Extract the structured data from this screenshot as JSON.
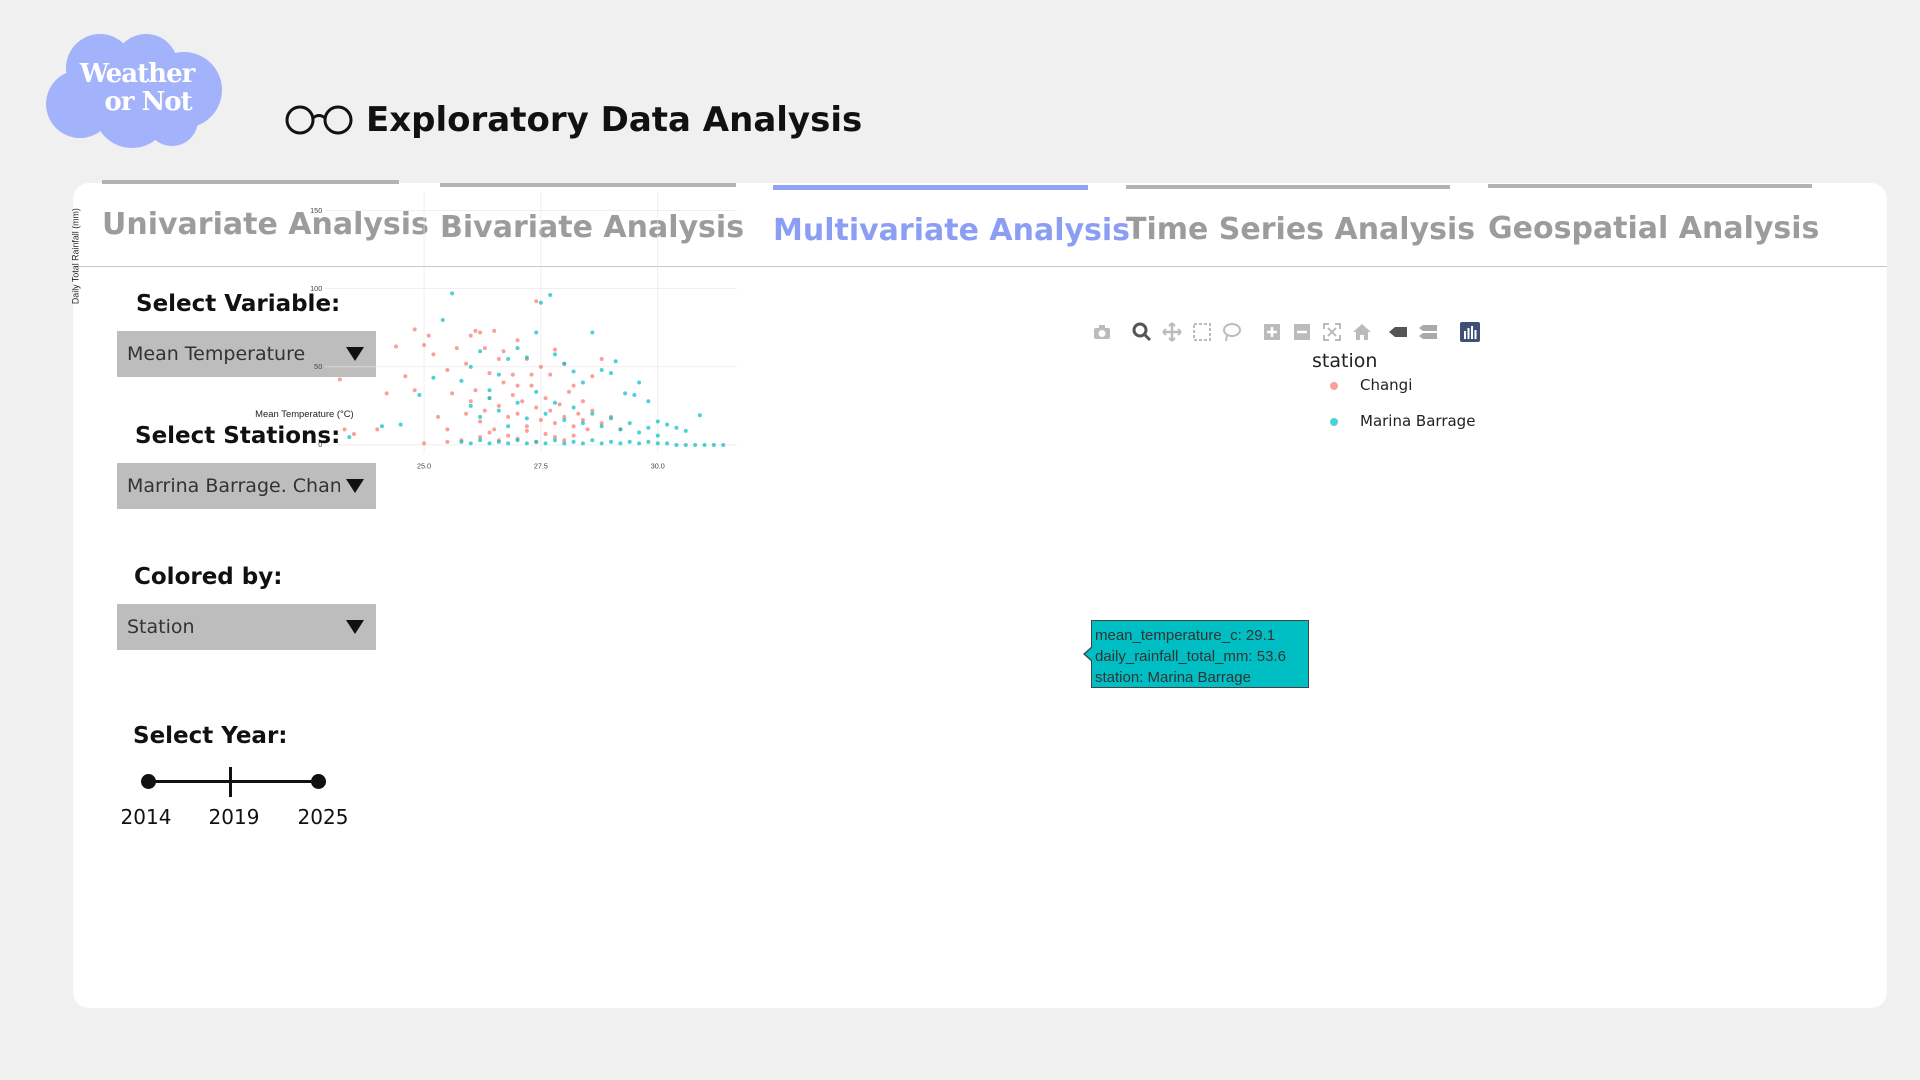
{
  "logo": {
    "line1": "Weather",
    "line2": "or Not",
    "color": "#a3b3fb"
  },
  "page": {
    "title": "Exploratory Data Analysis",
    "icon": "glasses-icon"
  },
  "tabs": [
    {
      "label": "Univariate Analysis",
      "active": false
    },
    {
      "label": "Bivariate Analysis",
      "active": false
    },
    {
      "label": "Multivariate Analysis",
      "active": true
    },
    {
      "label": "Time Series Analysis",
      "active": false
    },
    {
      "label": "Geospatial Analysis",
      "active": false
    }
  ],
  "controls": {
    "variable": {
      "label": "Select Variable:",
      "value": "Mean Temperature"
    },
    "stations": {
      "label": "Select Stations:",
      "value": "Marrina Barrage. Changi"
    },
    "colored_by": {
      "label": "Colored by:",
      "value": "Station"
    },
    "year": {
      "label": "Select Year:",
      "min": "2014",
      "mid": "2019",
      "max": "2025"
    }
  },
  "modebar": [
    "camera-icon",
    "zoom-icon",
    "pan-icon",
    "box-select-icon",
    "lasso-select-icon",
    "zoom-in-icon",
    "zoom-out-icon",
    "autoscale-icon",
    "reset-axes-icon",
    "hover-closest-icon",
    "hover-compare-icon",
    "plotly-logo-icon"
  ],
  "tooltip": {
    "line1": "mean_temperature_c: 29.1",
    "line2": "daily_rainfall_total_mm:  53.6",
    "line3": "station: Marina Barrage"
  },
  "chart_data": {
    "type": "scatter",
    "title": "",
    "xlabel": "Mean Temperature (°C)",
    "ylabel": "Daily Total Rainfall (mm)",
    "xlim": [
      23.0,
      31.7
    ],
    "ylim": [
      -5,
      155
    ],
    "xticks": [
      "25.0",
      "27.5",
      "30.0"
    ],
    "xtick_values": [
      25.0,
      27.5,
      30.0
    ],
    "yticks": [
      "0",
      "50",
      "100",
      "150"
    ],
    "ytick_values": [
      0,
      50,
      100,
      150
    ],
    "grid": true,
    "legend": {
      "title": "station",
      "placement": "right"
    },
    "series": [
      {
        "name": "Changi",
        "color": "#f8766d",
        "points": [
          [
            23.2,
            42
          ],
          [
            23.3,
            10
          ],
          [
            23.5,
            7
          ],
          [
            24.0,
            10
          ],
          [
            24.2,
            33
          ],
          [
            24.4,
            63
          ],
          [
            24.6,
            44
          ],
          [
            24.8,
            35
          ],
          [
            24.8,
            74
          ],
          [
            25.0,
            64
          ],
          [
            25.1,
            70
          ],
          [
            25.2,
            58
          ],
          [
            25.3,
            18
          ],
          [
            25.5,
            48
          ],
          [
            25.5,
            10
          ],
          [
            25.6,
            33
          ],
          [
            25.7,
            62
          ],
          [
            25.9,
            52
          ],
          [
            26.0,
            70
          ],
          [
            26.1,
            73
          ],
          [
            26.2,
            72
          ],
          [
            26.3,
            62
          ],
          [
            26.4,
            46
          ],
          [
            26.5,
            73
          ],
          [
            26.6,
            55
          ],
          [
            26.7,
            60
          ],
          [
            26.9,
            45
          ],
          [
            27.0,
            67
          ],
          [
            27.0,
            38
          ],
          [
            27.2,
            55
          ],
          [
            27.3,
            45
          ],
          [
            27.4,
            92
          ],
          [
            27.5,
            50
          ],
          [
            27.7,
            45
          ],
          [
            27.8,
            61
          ],
          [
            28.0,
            52
          ],
          [
            28.2,
            38
          ],
          [
            28.4,
            28
          ],
          [
            28.6,
            44
          ],
          [
            28.8,
            55
          ],
          [
            25.9,
            20
          ],
          [
            26.0,
            28
          ],
          [
            26.1,
            35
          ],
          [
            26.2,
            15
          ],
          [
            26.3,
            22
          ],
          [
            26.4,
            30
          ],
          [
            26.5,
            10
          ],
          [
            26.6,
            25
          ],
          [
            26.7,
            40
          ],
          [
            26.8,
            18
          ],
          [
            26.9,
            32
          ],
          [
            27.0,
            20
          ],
          [
            27.1,
            28
          ],
          [
            27.2,
            12
          ],
          [
            27.3,
            38
          ],
          [
            27.4,
            24
          ],
          [
            27.5,
            16
          ],
          [
            27.6,
            30
          ],
          [
            27.7,
            22
          ],
          [
            27.8,
            14
          ],
          [
            27.9,
            26
          ],
          [
            28.0,
            18
          ],
          [
            28.1,
            34
          ],
          [
            28.2,
            12
          ],
          [
            28.3,
            20
          ],
          [
            28.4,
            16
          ],
          [
            28.5,
            10
          ],
          [
            28.6,
            22
          ],
          [
            28.8,
            14
          ],
          [
            29.0,
            18
          ],
          [
            29.2,
            10
          ],
          [
            26.2,
            5
          ],
          [
            26.4,
            8
          ],
          [
            26.6,
            3
          ],
          [
            26.8,
            6
          ],
          [
            27.0,
            4
          ],
          [
            27.2,
            9
          ],
          [
            27.4,
            2
          ],
          [
            27.6,
            7
          ],
          [
            27.8,
            5
          ],
          [
            28.0,
            3
          ],
          [
            28.2,
            6
          ],
          [
            25.0,
            1
          ],
          [
            25.5,
            2
          ],
          [
            25.8,
            3
          ]
        ]
      },
      {
        "name": "Marina Barrage",
        "color": "#00bfc4",
        "points": [
          [
            23.4,
            5
          ],
          [
            24.1,
            12
          ],
          [
            24.5,
            13
          ],
          [
            24.9,
            32
          ],
          [
            25.2,
            43
          ],
          [
            25.4,
            80
          ],
          [
            25.6,
            97
          ],
          [
            25.8,
            41
          ],
          [
            26.0,
            50
          ],
          [
            26.2,
            60
          ],
          [
            26.4,
            35
          ],
          [
            26.6,
            45
          ],
          [
            26.8,
            55
          ],
          [
            27.0,
            62
          ],
          [
            27.2,
            56
          ],
          [
            27.4,
            72
          ],
          [
            27.5,
            91
          ],
          [
            27.7,
            96
          ],
          [
            27.8,
            58
          ],
          [
            28.0,
            52
          ],
          [
            28.2,
            47
          ],
          [
            28.4,
            40
          ],
          [
            28.6,
            72
          ],
          [
            28.8,
            48
          ],
          [
            29.0,
            46
          ],
          [
            29.1,
            53.6
          ],
          [
            29.3,
            33
          ],
          [
            29.5,
            32
          ],
          [
            29.6,
            40
          ],
          [
            29.8,
            28
          ],
          [
            30.0,
            15
          ],
          [
            30.2,
            13
          ],
          [
            30.4,
            11
          ],
          [
            30.6,
            9
          ],
          [
            30.9,
            19
          ],
          [
            26.0,
            25
          ],
          [
            26.2,
            18
          ],
          [
            26.4,
            30
          ],
          [
            26.6,
            22
          ],
          [
            26.8,
            12
          ],
          [
            27.0,
            27
          ],
          [
            27.2,
            17
          ],
          [
            27.4,
            34
          ],
          [
            27.6,
            20
          ],
          [
            27.8,
            27
          ],
          [
            28.0,
            16
          ],
          [
            28.2,
            24
          ],
          [
            28.4,
            14
          ],
          [
            28.6,
            20
          ],
          [
            28.8,
            12
          ],
          [
            29.0,
            17
          ],
          [
            29.2,
            10
          ],
          [
            29.4,
            14
          ],
          [
            29.6,
            8
          ],
          [
            29.8,
            11
          ],
          [
            30.0,
            6
          ],
          [
            25.8,
            2
          ],
          [
            26.0,
            1
          ],
          [
            26.2,
            3
          ],
          [
            26.4,
            1
          ],
          [
            26.6,
            2
          ],
          [
            26.8,
            1
          ],
          [
            27.0,
            3
          ],
          [
            27.2,
            1
          ],
          [
            27.4,
            2
          ],
          [
            27.6,
            1
          ],
          [
            27.8,
            3
          ],
          [
            28.0,
            1
          ],
          [
            28.2,
            2
          ],
          [
            28.4,
            1
          ],
          [
            28.6,
            3
          ],
          [
            28.8,
            1
          ],
          [
            29.0,
            2
          ],
          [
            29.2,
            1
          ],
          [
            29.4,
            2
          ],
          [
            29.6,
            1
          ],
          [
            29.8,
            2
          ],
          [
            30.0,
            1
          ],
          [
            30.2,
            1
          ],
          [
            30.4,
            0
          ],
          [
            30.6,
            0
          ],
          [
            30.8,
            0
          ],
          [
            31.0,
            0
          ],
          [
            31.2,
            0
          ],
          [
            31.4,
            0
          ]
        ]
      }
    ]
  }
}
